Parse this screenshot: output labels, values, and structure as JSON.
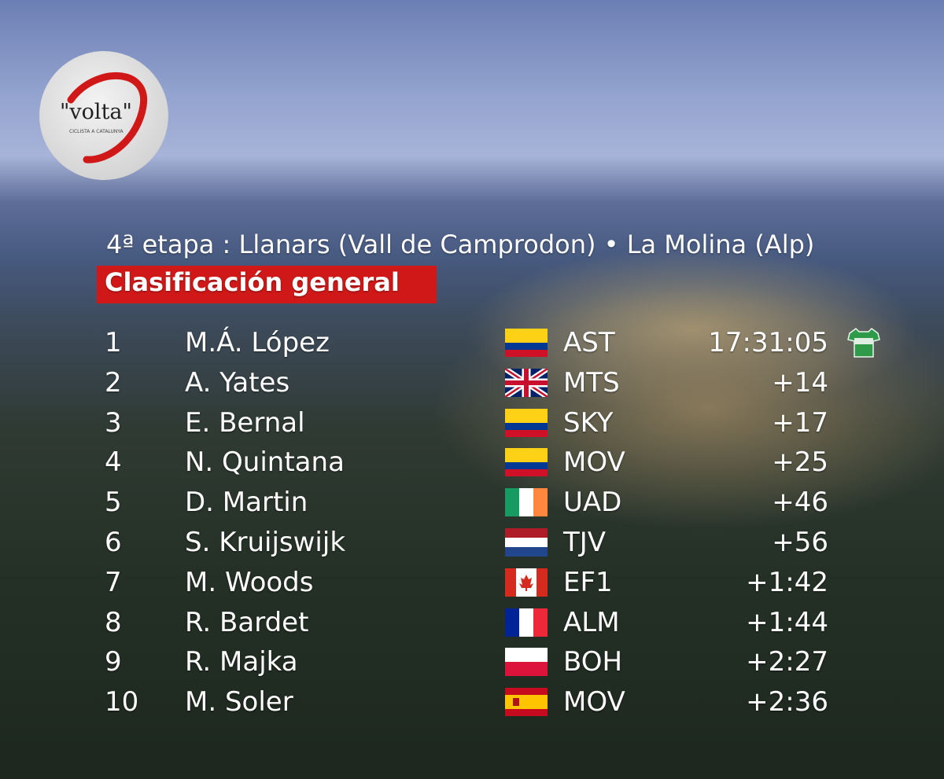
{
  "logo": {
    "name": "\"volta\"",
    "subtitle": "CICLISTA A CATALUNYA"
  },
  "stage": "4ª etapa : Llanars (Vall de Camprodon) • La Molina (Alp)",
  "classification": "Clasificación general",
  "table": {
    "rows": [
      [
        "1",
        "M.Á. López",
        "AST",
        "17:31:05"
      ],
      [
        "2",
        "A. Yates",
        "MTS",
        "+14"
      ],
      [
        "3",
        "E. Bernal",
        "SKY",
        "+17"
      ],
      [
        "4",
        "N. Quintana",
        "MOV",
        "+25"
      ],
      [
        "5",
        "D. Martin",
        "UAD",
        "+46"
      ],
      [
        "6",
        "S. Kruijswijk",
        "TJV",
        "+56"
      ],
      [
        "7",
        "M. Woods",
        "EF1",
        "+1:42"
      ],
      [
        "8",
        "R. Bardet",
        "ALM",
        "+1:44"
      ],
      [
        "9",
        "R. Majka",
        "BOH",
        "+2:27"
      ],
      [
        "10",
        "M. Soler",
        "MOV",
        "+2:36"
      ]
    ]
  }
}
